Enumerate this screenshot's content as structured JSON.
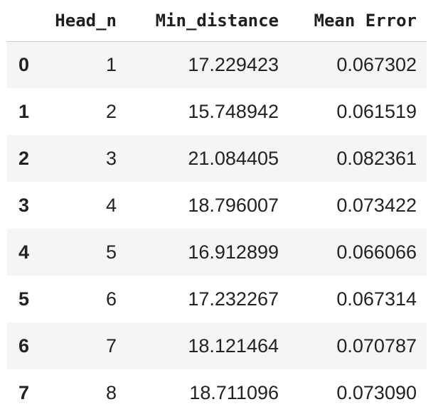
{
  "table": {
    "columns": [
      "",
      "Head_n",
      "Min_distance",
      "Mean Error"
    ],
    "rows": [
      {
        "index": "0",
        "head_n": "1",
        "min_distance": "17.229423",
        "mean_error": "0.067302"
      },
      {
        "index": "1",
        "head_n": "2",
        "min_distance": "15.748942",
        "mean_error": "0.061519"
      },
      {
        "index": "2",
        "head_n": "3",
        "min_distance": "21.084405",
        "mean_error": "0.082361"
      },
      {
        "index": "3",
        "head_n": "4",
        "min_distance": "18.796007",
        "mean_error": "0.073422"
      },
      {
        "index": "4",
        "head_n": "5",
        "min_distance": "16.912899",
        "mean_error": "0.066066"
      },
      {
        "index": "5",
        "head_n": "6",
        "min_distance": "17.232267",
        "mean_error": "0.067314"
      },
      {
        "index": "6",
        "head_n": "7",
        "min_distance": "18.121464",
        "mean_error": "0.070787"
      },
      {
        "index": "7",
        "head_n": "8",
        "min_distance": "18.711096",
        "mean_error": "0.073090"
      }
    ]
  }
}
